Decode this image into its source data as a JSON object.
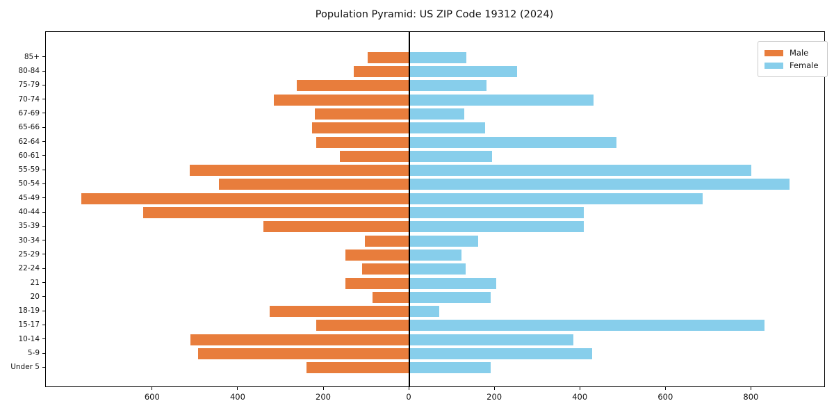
{
  "chart_data": {
    "type": "bar",
    "variant": "population-pyramid-horizontal",
    "title": "Population Pyramid: US ZIP Code 19312 (2024)",
    "categories_top_to_bottom": [
      "85+",
      "80-84",
      "75-79",
      "70-74",
      "67-69",
      "65-66",
      "62-64",
      "60-61",
      "55-59",
      "50-54",
      "45-49",
      "40-44",
      "35-39",
      "30-34",
      "25-29",
      "22-24",
      "21",
      "20",
      "18-19",
      "15-17",
      "10-14",
      "5-9",
      "Under 5"
    ],
    "series": [
      {
        "name": "Male",
        "direction": "left",
        "color": "#E87D3C",
        "values": [
          97,
          130,
          264,
          317,
          221,
          228,
          218,
          162,
          513,
          445,
          767,
          622,
          342,
          104,
          149,
          111,
          149,
          87,
          327,
          218,
          512,
          494,
          240
        ]
      },
      {
        "name": "Female",
        "direction": "right",
        "color": "#87CEEB",
        "values": [
          133,
          251,
          181,
          430,
          128,
          177,
          484,
          194,
          800,
          888,
          686,
          407,
          408,
          161,
          121,
          132,
          203,
          190,
          69,
          830,
          383,
          428,
          190
        ]
      }
    ],
    "x_axis": {
      "tick_values": [
        -600,
        -400,
        -200,
        0,
        200,
        400,
        600,
        800
      ],
      "tick_labels": [
        "600",
        "400",
        "200",
        "0",
        "200",
        "400",
        "600",
        "800"
      ],
      "labels_show_absolute_value": true,
      "xlim": [
        -850,
        970
      ]
    },
    "y_axis": {
      "label_side": "left"
    },
    "legend": {
      "position": "upper-right",
      "entries": [
        "Male",
        "Female"
      ]
    },
    "grid": false,
    "zero_line": true,
    "background_color": "#ffffff",
    "axis_color": "#000000"
  }
}
